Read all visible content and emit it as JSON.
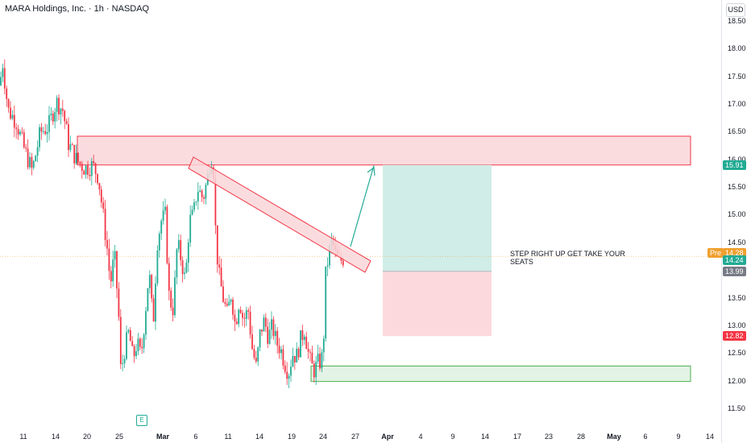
{
  "header": {
    "title": "MARA Holdings, Inc. · 1h · NASDAQ",
    "currency": "USD"
  },
  "event_flag": "E",
  "annotation_text": "STEP RIGHT UP GET TAKE YOUR SEATS",
  "colors": {
    "up": "#22ab94",
    "down": "#f23645",
    "resistance_fill": "#f9d6d9",
    "support_stroke": "#22ab94",
    "target_zone": "#d1ede7",
    "stop_zone": "#fcd9dd",
    "trend_arrow": "#22ab94",
    "price_label": "#22ab94",
    "premarket": "#f0a030",
    "neutral": "#787b86"
  },
  "chart_data": {
    "type": "candlestick",
    "symbol": "MARA",
    "interval": "1h",
    "y_axis": {
      "ticks": [
        18.5,
        18.0,
        17.5,
        17.0,
        16.5,
        16.0,
        15.5,
        15.0,
        14.5,
        14.0,
        13.5,
        13.0,
        12.5,
        12.0,
        11.5
      ],
      "tick_labels": [
        "18.50",
        "18.00",
        "17.50",
        "17.00",
        "16.50",
        "16.00",
        "15.50",
        "15.00",
        "14.50",
        "14.00",
        "13.50",
        "13.00",
        "12.50",
        "12.00",
        "11.50"
      ],
      "ylim": [
        11.35,
        18.8
      ]
    },
    "x_axis": {
      "tick_labels": [
        {
          "text": "11",
          "bold": false
        },
        {
          "text": "14",
          "bold": false
        },
        {
          "text": "20",
          "bold": false
        },
        {
          "text": "25",
          "bold": false
        },
        {
          "text": "Mar",
          "bold": true
        },
        {
          "text": "6",
          "bold": false
        },
        {
          "text": "11",
          "bold": false
        },
        {
          "text": "14",
          "bold": false
        },
        {
          "text": "19",
          "bold": false
        },
        {
          "text": "24",
          "bold": false
        },
        {
          "text": "27",
          "bold": false
        },
        {
          "text": "Apr",
          "bold": true
        },
        {
          "text": "4",
          "bold": false
        },
        {
          "text": "9",
          "bold": false
        },
        {
          "text": "14",
          "bold": false
        },
        {
          "text": "17",
          "bold": false
        },
        {
          "text": "23",
          "bold": false
        },
        {
          "text": "28",
          "bold": false
        },
        {
          "text": "May",
          "bold": true
        },
        {
          "text": "6",
          "bold": false
        },
        {
          "text": "9",
          "bold": false
        },
        {
          "text": "14",
          "bold": false
        }
      ]
    },
    "price_path": [
      [
        0,
        17.35
      ],
      [
        3,
        17.8
      ],
      [
        10,
        16.9
      ],
      [
        20,
        16.7
      ],
      [
        30,
        16.2
      ],
      [
        40,
        15.8
      ],
      [
        50,
        16.5
      ],
      [
        60,
        16.6
      ],
      [
        70,
        17.05
      ],
      [
        78,
        16.9
      ],
      [
        85,
        16.3
      ],
      [
        95,
        16.0
      ],
      [
        105,
        15.85
      ],
      [
        115,
        15.9
      ],
      [
        122,
        15.7
      ],
      [
        128,
        15.0
      ],
      [
        133,
        14.4
      ],
      [
        137,
        13.75
      ],
      [
        142,
        14.3
      ],
      [
        147,
        13.3
      ],
      [
        150,
        12.15
      ],
      [
        155,
        12.6
      ],
      [
        160,
        12.9
      ],
      [
        165,
        12.4
      ],
      [
        170,
        12.7
      ],
      [
        175,
        12.45
      ],
      [
        180,
        13.2
      ],
      [
        185,
        14.0
      ],
      [
        190,
        13.0
      ],
      [
        195,
        14.5
      ],
      [
        200,
        14.9
      ],
      [
        205,
        15.0
      ],
      [
        210,
        13.5
      ],
      [
        215,
        13.3
      ],
      [
        220,
        14.5
      ],
      [
        225,
        14.2
      ],
      [
        230,
        13.8
      ],
      [
        235,
        14.9
      ],
      [
        240,
        15.0
      ],
      [
        245,
        15.5
      ],
      [
        252,
        15.3
      ],
      [
        258,
        15.7
      ],
      [
        262,
        16.1
      ],
      [
        265,
        15.8
      ],
      [
        268,
        14.5
      ],
      [
        272,
        13.9
      ],
      [
        277,
        13.5
      ],
      [
        282,
        13.2
      ],
      [
        287,
        13.6
      ],
      [
        292,
        13.0
      ],
      [
        297,
        13.5
      ],
      [
        302,
        13.1
      ],
      [
        308,
        13.3
      ],
      [
        313,
        12.6
      ],
      [
        318,
        12.25
      ],
      [
        323,
        12.9
      ],
      [
        328,
        13.1
      ],
      [
        333,
        12.8
      ],
      [
        338,
        13.0
      ],
      [
        343,
        12.7
      ],
      [
        348,
        12.6
      ],
      [
        353,
        12.35
      ],
      [
        358,
        12.15
      ],
      [
        363,
        12.5
      ],
      [
        368,
        12.45
      ],
      [
        373,
        12.75
      ],
      [
        378,
        12.95
      ],
      [
        382,
        12.55
      ],
      [
        386,
        12.3
      ],
      [
        390,
        12.2
      ],
      [
        395,
        12.35
      ],
      [
        399,
        12.35
      ],
      [
        402,
        12.9
      ],
      [
        404,
        13.9
      ],
      [
        408,
        14.3
      ],
      [
        412,
        14.55
      ],
      [
        416,
        14.3
      ],
      [
        420,
        14.15
      ],
      [
        424,
        14.2
      ],
      [
        428,
        14.25
      ]
    ],
    "annotations": {
      "resistance_zone": {
        "from": 15.91,
        "to": 16.43,
        "x_start_label": "18",
        "x_end_label": "May 11"
      },
      "support_zone": {
        "from": 12.0,
        "to": 12.28
      },
      "descending_channel": {
        "start_price": 15.88,
        "end_price": 14.2
      },
      "trend_arrow": {
        "from_price": 14.4,
        "to_price": 15.9
      },
      "long_position": {
        "entry": 13.99,
        "target": 15.91,
        "stop": 12.82
      }
    },
    "price_labels": [
      {
        "text": "15.91",
        "role": "target",
        "price": 15.91,
        "color": "#22ab94"
      },
      {
        "text": "14.28",
        "role": "premarket",
        "price": 14.28,
        "prefix": "Pre",
        "color": "#f0a030"
      },
      {
        "text": "14.24",
        "role": "last",
        "price": 14.24,
        "color": "#22ab94"
      },
      {
        "text": "13.99",
        "role": "entry",
        "price": 13.99,
        "color": "#787b86"
      },
      {
        "text": "12.82",
        "role": "stop",
        "price": 12.82,
        "color": "#f23645"
      }
    ]
  }
}
